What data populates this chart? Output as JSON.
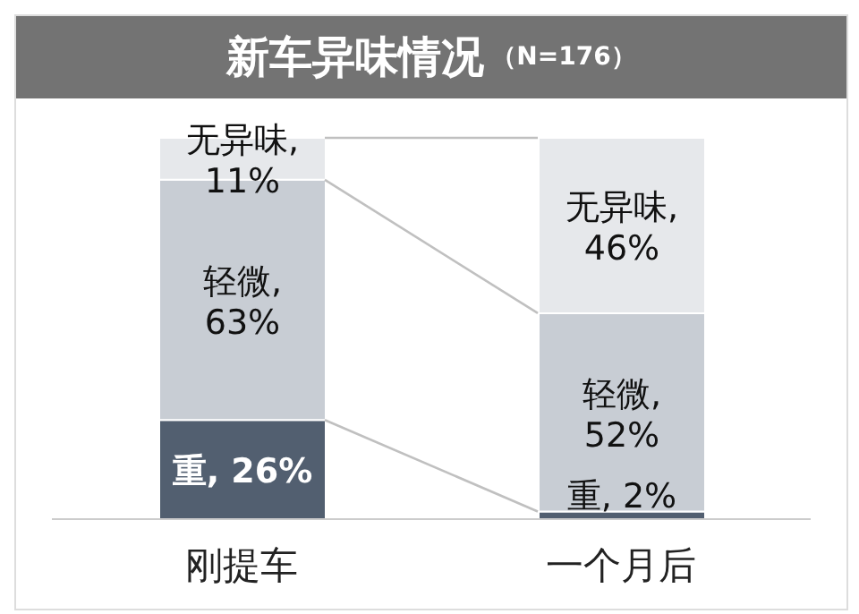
{
  "chart_data": {
    "type": "bar",
    "title": "新车异味情况",
    "subtitle": "（N=176）",
    "categories": [
      "刚提车",
      "一个月后"
    ],
    "stacked": true,
    "legend": false,
    "grid": false,
    "series": [
      {
        "color": "#525f70",
        "values": [
          26,
          2
        ],
        "value_labels": [
          "重, 26%",
          "重, 2%"
        ]
      },
      {
        "color": "#c8cdd4",
        "values": [
          63,
          52
        ],
        "value_labels": [
          "轻微, 63%",
          "轻微, 52%"
        ]
      },
      {
        "color": "#e6e8eb",
        "values": [
          11,
          46
        ],
        "value_labels": [
          "无异味, 11%",
          "无异味, 46%"
        ]
      }
    ]
  }
}
